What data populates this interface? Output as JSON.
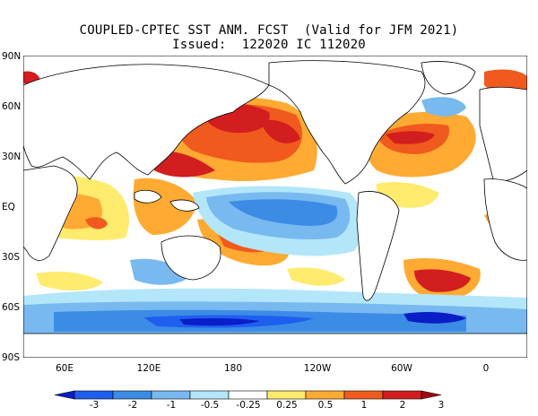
{
  "title": {
    "line1": "COUPLED-CPTEC SST ANM. FCST  (Valid for JFM 2021)",
    "line2": "Issued:  122020 IC 112020"
  },
  "lat_labels": [
    "90N",
    "60N",
    "30N",
    "EQ",
    "30S",
    "60S",
    "90S"
  ],
  "lon_labels": [
    "60E",
    "120E",
    "180",
    "120W",
    "60W",
    "0"
  ],
  "colorbar": {
    "labels": [
      "-3",
      "-2",
      "-1",
      "-0.5",
      "-0.25",
      "0.25",
      "0.5",
      "1",
      "2",
      "3"
    ],
    "colors": [
      "#0a1ec8",
      "#1e5ff0",
      "#3c8ce6",
      "#78b9f0",
      "#b4e6fa",
      "#ffffff",
      "#ffeb6e",
      "#ffaa32",
      "#f05a1e",
      "#d21e1e",
      "#a00a0a"
    ]
  },
  "anomaly_field": {
    "unit": "degC",
    "regions": [
      {
        "name": "equatorial-pacific",
        "value": -1
      },
      {
        "name": "north-pacific",
        "value": 1.5
      },
      {
        "name": "north-atlantic",
        "value": 1.5
      },
      {
        "name": "southern-ocean",
        "value": -1.5
      },
      {
        "name": "south-atlantic",
        "value": 1.5
      },
      {
        "name": "indian-ocean",
        "value": 0.5
      }
    ]
  }
}
